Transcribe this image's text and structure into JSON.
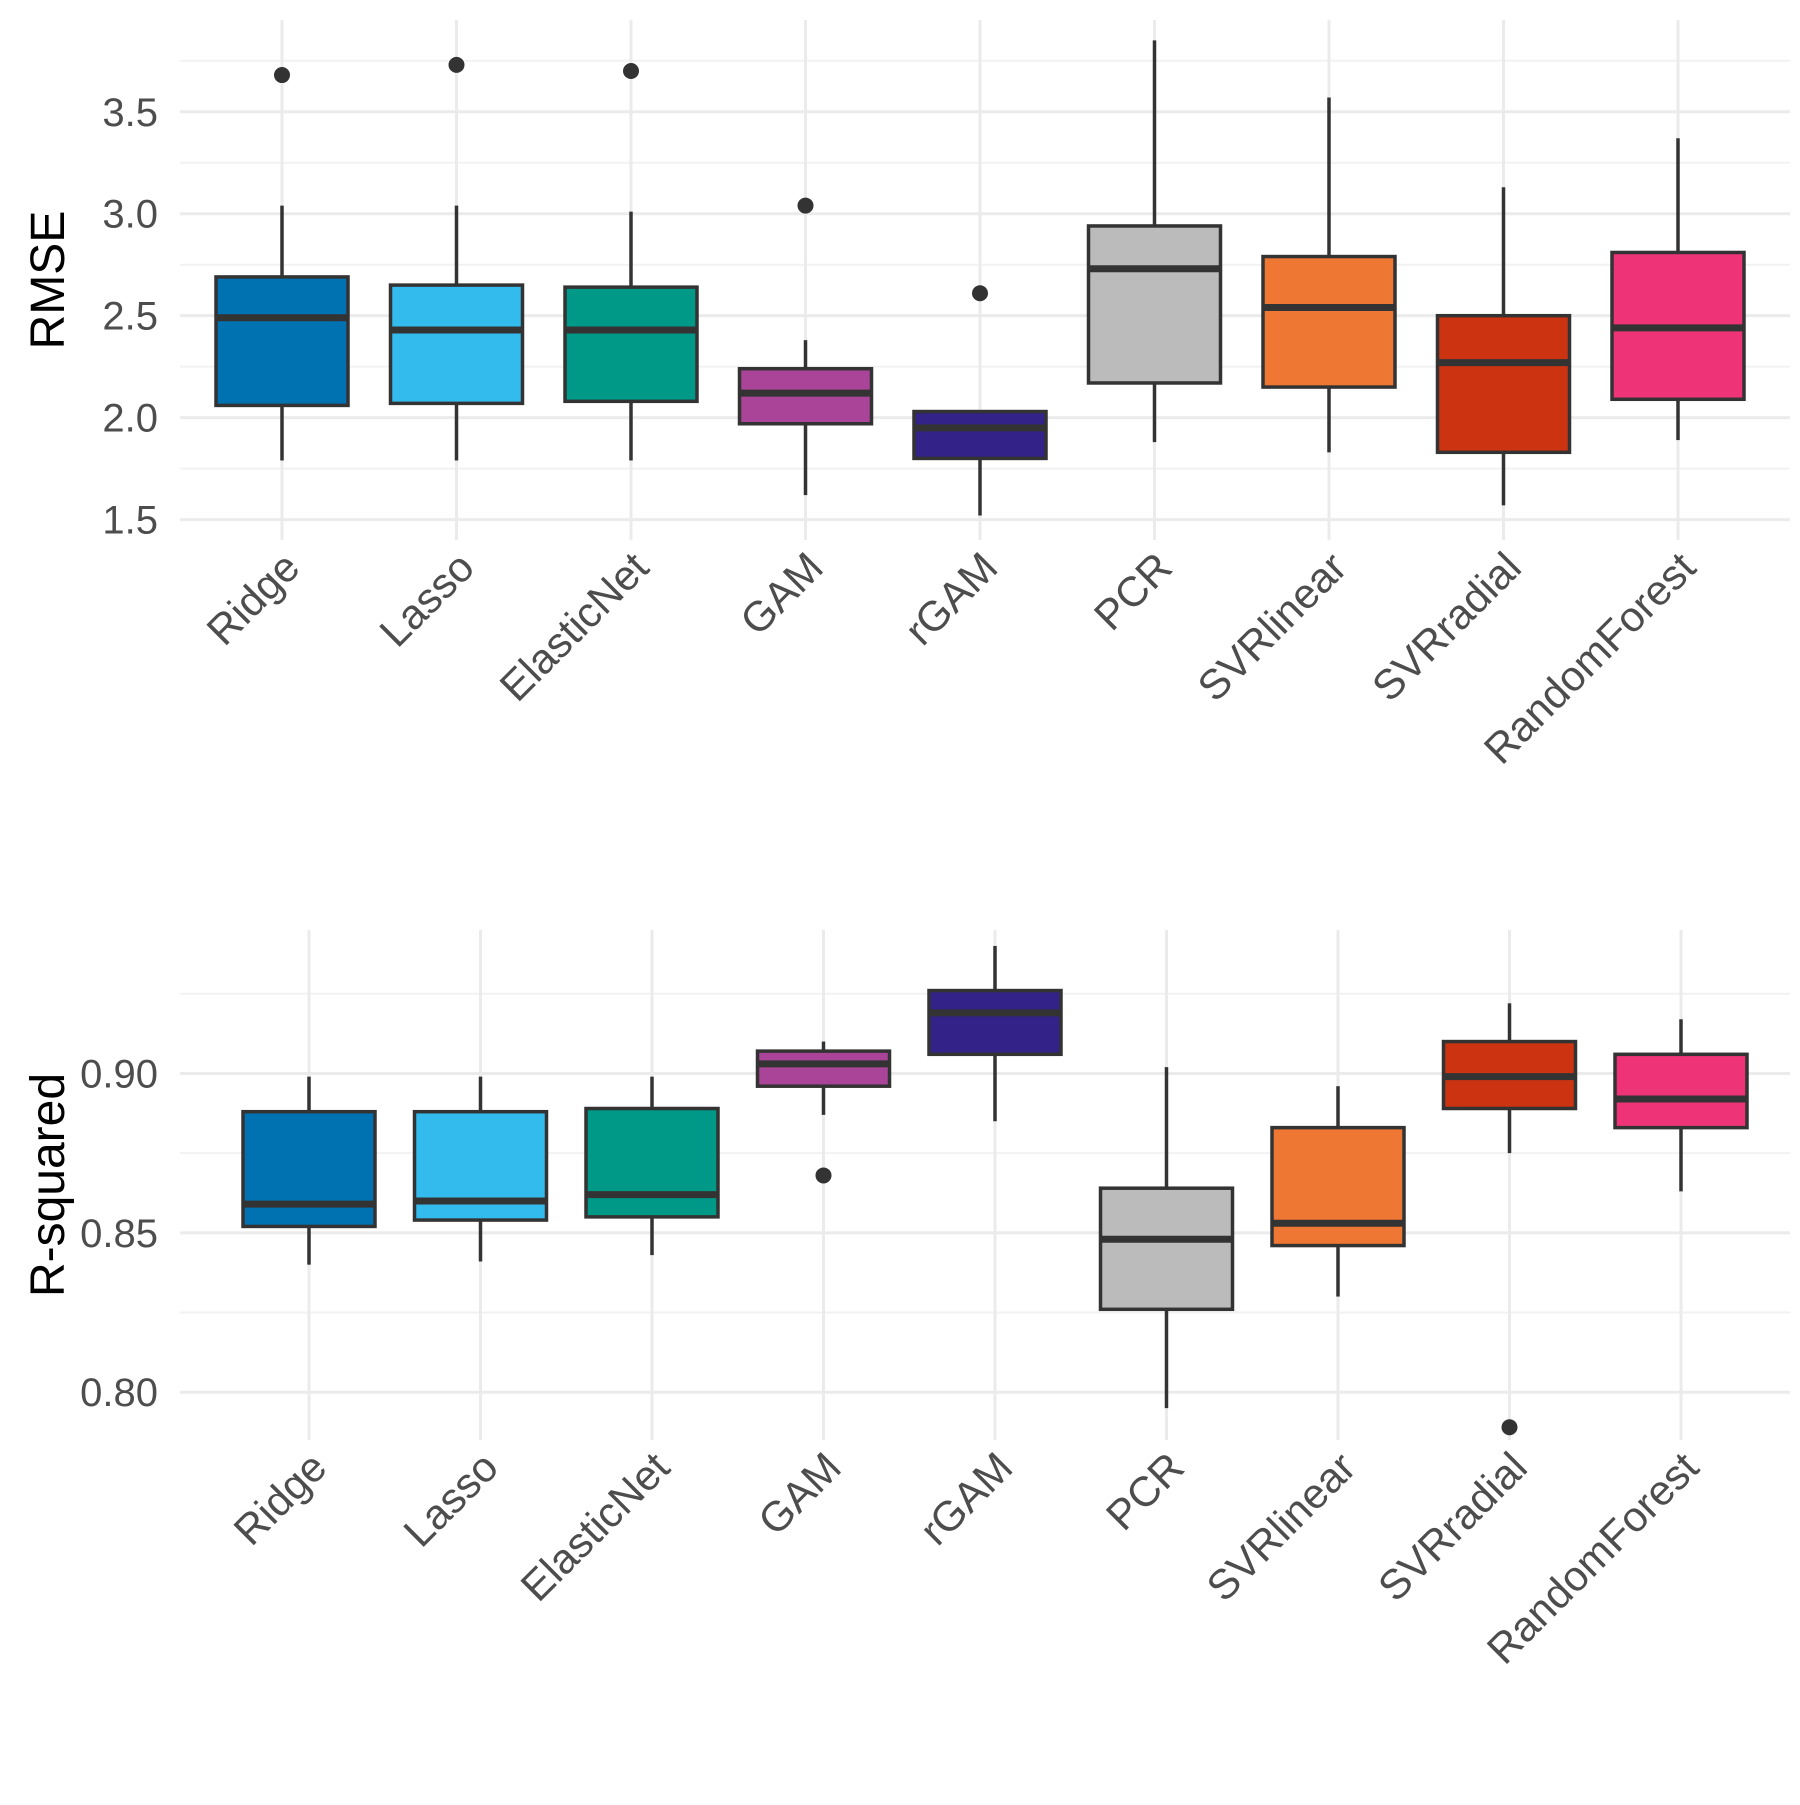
{
  "chart_data": [
    {
      "type": "boxplot",
      "ylabel": "RMSE",
      "ylim": [
        1.4,
        3.95
      ],
      "ytick_values": [
        1.5,
        2.0,
        2.5,
        3.0,
        3.5
      ],
      "ytick_labels": [
        "1.5",
        "2.0",
        "2.5",
        "3.0",
        "3.5"
      ],
      "yminor": [
        1.75,
        2.25,
        2.75,
        3.25,
        3.75
      ],
      "categories": [
        "Ridge",
        "Lasso",
        "ElasticNet",
        "GAM",
        "rGAM",
        "PCR",
        "SVRlinear",
        "SVRradial",
        "RandomForest"
      ],
      "boxes": [
        {
          "name": "Ridge",
          "whisker_low": 1.79,
          "q1": 2.06,
          "median": 2.49,
          "q3": 2.69,
          "whisker_high": 3.04,
          "outliers": [
            3.68
          ],
          "color": "#0072B2"
        },
        {
          "name": "Lasso",
          "whisker_low": 1.79,
          "q1": 2.07,
          "median": 2.43,
          "q3": 2.65,
          "whisker_high": 3.04,
          "outliers": [
            3.73
          ],
          "color": "#33BBEE"
        },
        {
          "name": "ElasticNet",
          "whisker_low": 1.79,
          "q1": 2.08,
          "median": 2.43,
          "q3": 2.64,
          "whisker_high": 3.01,
          "outliers": [
            3.7
          ],
          "color": "#009988"
        },
        {
          "name": "GAM",
          "whisker_low": 1.62,
          "q1": 1.97,
          "median": 2.12,
          "q3": 2.24,
          "whisker_high": 2.38,
          "outliers": [
            3.04
          ],
          "color": "#AA4499"
        },
        {
          "name": "rGAM",
          "whisker_low": 1.52,
          "q1": 1.8,
          "median": 1.95,
          "q3": 2.03,
          "whisker_high": 2.03,
          "outliers": [
            2.61
          ],
          "color": "#332288"
        },
        {
          "name": "PCR",
          "whisker_low": 1.88,
          "q1": 2.17,
          "median": 2.73,
          "q3": 2.94,
          "whisker_high": 3.85,
          "outliers": [],
          "color": "#BBBBBB"
        },
        {
          "name": "SVRlinear",
          "whisker_low": 1.83,
          "q1": 2.15,
          "median": 2.54,
          "q3": 2.79,
          "whisker_high": 3.57,
          "outliers": [],
          "color": "#EE7733"
        },
        {
          "name": "SVRradial",
          "whisker_low": 1.57,
          "q1": 1.83,
          "median": 2.27,
          "q3": 2.5,
          "whisker_high": 3.13,
          "outliers": [],
          "color": "#CC3311"
        },
        {
          "name": "RandomForest",
          "whisker_low": 1.89,
          "q1": 2.09,
          "median": 2.44,
          "q3": 2.81,
          "whisker_high": 3.37,
          "outliers": [],
          "color": "#EE3377"
        }
      ]
    },
    {
      "type": "boxplot",
      "ylabel": "R-squared",
      "ylim": [
        0.785,
        0.945
      ],
      "ytick_values": [
        0.8,
        0.85,
        0.9
      ],
      "ytick_labels": [
        "0.80",
        "0.85",
        "0.90"
      ],
      "yminor": [
        0.825,
        0.875,
        0.925
      ],
      "categories": [
        "Ridge",
        "Lasso",
        "ElasticNet",
        "GAM",
        "rGAM",
        "PCR",
        "SVRlinear",
        "SVRradial",
        "RandomForest"
      ],
      "boxes": [
        {
          "name": "Ridge",
          "whisker_low": 0.84,
          "q1": 0.852,
          "median": 0.859,
          "q3": 0.888,
          "whisker_high": 0.899,
          "outliers": [],
          "color": "#0072B2"
        },
        {
          "name": "Lasso",
          "whisker_low": 0.841,
          "q1": 0.854,
          "median": 0.86,
          "q3": 0.888,
          "whisker_high": 0.899,
          "outliers": [],
          "color": "#33BBEE"
        },
        {
          "name": "ElasticNet",
          "whisker_low": 0.843,
          "q1": 0.855,
          "median": 0.862,
          "q3": 0.889,
          "whisker_high": 0.899,
          "outliers": [],
          "color": "#009988"
        },
        {
          "name": "GAM",
          "whisker_low": 0.887,
          "q1": 0.896,
          "median": 0.903,
          "q3": 0.907,
          "whisker_high": 0.91,
          "outliers": [
            0.868
          ],
          "color": "#AA4499"
        },
        {
          "name": "rGAM",
          "whisker_low": 0.885,
          "q1": 0.906,
          "median": 0.919,
          "q3": 0.926,
          "whisker_high": 0.94,
          "outliers": [],
          "color": "#332288"
        },
        {
          "name": "PCR",
          "whisker_low": 0.795,
          "q1": 0.826,
          "median": 0.848,
          "q3": 0.864,
          "whisker_high": 0.902,
          "outliers": [],
          "color": "#BBBBBB"
        },
        {
          "name": "SVRlinear",
          "whisker_low": 0.83,
          "q1": 0.846,
          "median": 0.853,
          "q3": 0.883,
          "whisker_high": 0.896,
          "outliers": [],
          "color": "#EE7733"
        },
        {
          "name": "SVRradial",
          "whisker_low": 0.875,
          "q1": 0.889,
          "median": 0.899,
          "q3": 0.91,
          "whisker_high": 0.922,
          "outliers": [
            0.789
          ],
          "color": "#CC3311"
        },
        {
          "name": "RandomForest",
          "whisker_low": 0.863,
          "q1": 0.883,
          "median": 0.892,
          "q3": 0.906,
          "whisker_high": 0.917,
          "outliers": [],
          "color": "#EE3377"
        }
      ]
    }
  ]
}
